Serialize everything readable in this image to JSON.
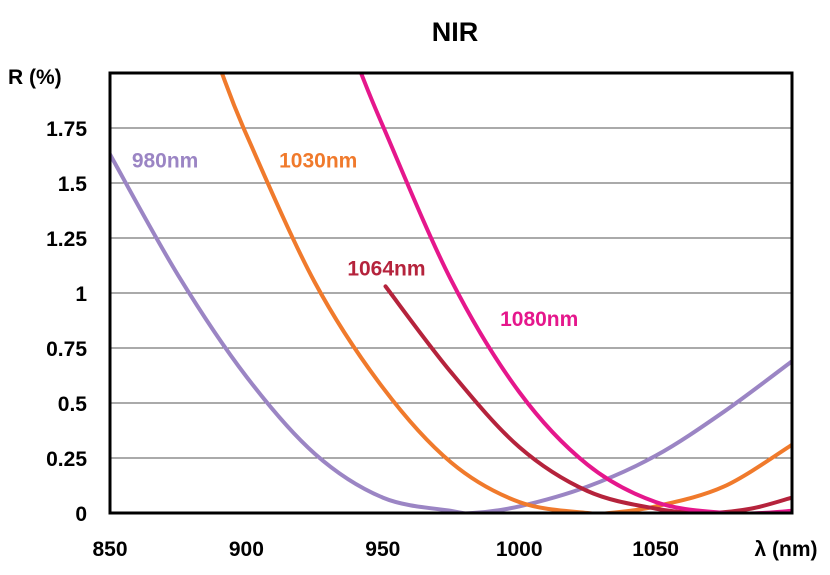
{
  "chart_data": {
    "type": "line",
    "title": "NIR",
    "ylabel": "R (%)",
    "xlabel": "λ (nm)",
    "xlim": [
      850,
      1100
    ],
    "ylim": [
      0,
      2.0
    ],
    "xticks": [
      850,
      900,
      950,
      1000,
      1050
    ],
    "yticks": [
      0,
      0.25,
      0.5,
      0.75,
      1,
      1.25,
      1.5,
      1.75
    ],
    "xtick_labels": [
      "850",
      "900",
      "950",
      "1000",
      "1050"
    ],
    "ytick_labels": [
      "0",
      "0.25",
      "0.5",
      "0.75",
      "1",
      "1.25",
      "1.5",
      "1.75"
    ],
    "grid": "horizontal",
    "legend": "inline labels",
    "series": [
      {
        "name": "980nm",
        "color": "#9B85C4",
        "x": [
          850,
          875,
          900,
          925,
          950,
          975,
          983,
          1000,
          1025,
          1050,
          1075,
          1100
        ],
        "y": [
          1.63,
          1.08,
          0.62,
          0.27,
          0.07,
          0.01,
          0.0,
          0.03,
          0.12,
          0.26,
          0.46,
          0.69
        ]
      },
      {
        "name": "1030nm",
        "color": "#F07A2C",
        "x": [
          891,
          900,
          925,
          950,
          975,
          1000,
          1025,
          1033,
          1050,
          1075,
          1100
        ],
        "y": [
          2.0,
          1.72,
          1.05,
          0.57,
          0.23,
          0.05,
          0.0,
          0.0,
          0.03,
          0.12,
          0.31
        ]
      },
      {
        "name": "1064nm",
        "color": "#B5233C",
        "x": [
          951,
          975,
          1000,
          1025,
          1050,
          1068,
          1085,
          1100
        ],
        "y": [
          1.03,
          0.64,
          0.3,
          0.1,
          0.02,
          0.0,
          0.02,
          0.07
        ]
      },
      {
        "name": "1080nm",
        "color": "#E5178C",
        "x": [
          942,
          950,
          975,
          1000,
          1025,
          1050,
          1075,
          1089,
          1100
        ],
        "y": [
          2.0,
          1.76,
          1.06,
          0.55,
          0.22,
          0.05,
          0.0,
          0.0,
          0.01
        ]
      }
    ]
  }
}
